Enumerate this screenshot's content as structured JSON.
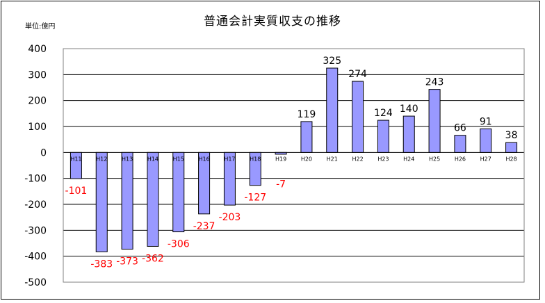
{
  "title": "普通会計実質収支の推移",
  "unit_label": "単位:億円",
  "chart_data": {
    "type": "bar",
    "title": "普通会計実質収支の推移",
    "unit": "単位:億円",
    "categories": [
      "H11",
      "H12",
      "H13",
      "H14",
      "H15",
      "H16",
      "H17",
      "H18",
      "H19",
      "H20",
      "H21",
      "H22",
      "H23",
      "H24",
      "H25",
      "H26",
      "H27",
      "H28"
    ],
    "values": [
      -101,
      -383,
      -373,
      -362,
      -306,
      -237,
      -203,
      -127,
      -7,
      119,
      325,
      274,
      124,
      140,
      243,
      66,
      91,
      38
    ],
    "ylim": [
      -500,
      400
    ],
    "yticks": [
      400,
      300,
      200,
      100,
      0,
      -100,
      -200,
      -300,
      -400,
      -500
    ],
    "grid": true,
    "colors": {
      "bar_fill": "#9999ff",
      "bar_stroke": "#000000",
      "positive_label": "#000000",
      "negative_label": "#ff0000"
    }
  }
}
